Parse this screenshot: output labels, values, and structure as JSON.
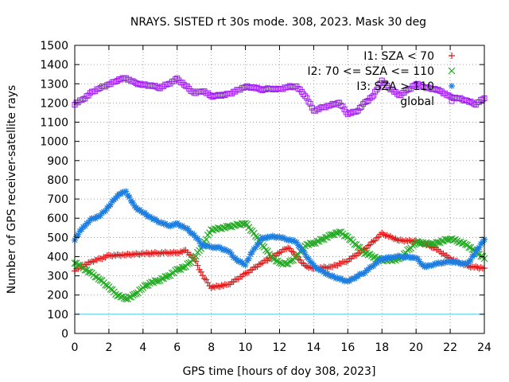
{
  "chart_data": {
    "type": "scatter",
    "title": "NRAYS. SISTED rt 30s mode. 308, 2023. Mask 30 deg",
    "xlabel": "GPS time [hours of doy 308, 2023]",
    "ylabel": "Number of GPS receiver-satellite rays",
    "xlim": [
      0,
      24
    ],
    "ylim": [
      0,
      1500
    ],
    "x_ticks": [
      "0",
      "2",
      "4",
      "6",
      "8",
      "10",
      "12",
      "14",
      "16",
      "18",
      "20",
      "22",
      "24"
    ],
    "y_ticks": [
      "0",
      "100",
      "200",
      "300",
      "400",
      "500",
      "600",
      "700",
      "800",
      "900",
      "1000",
      "1100",
      "1200",
      "1300",
      "1400",
      "1500"
    ],
    "grid": true,
    "legend_position": "top-right",
    "threshold_line": {
      "value": 100,
      "color": "#40d0e0"
    },
    "series": [
      {
        "name": "I1: SZA < 70",
        "color": "#e41a1c",
        "marker": "plus",
        "x": [
          0,
          1,
          2,
          3,
          4,
          5,
          6,
          6.5,
          7,
          7.5,
          8,
          9,
          10,
          11,
          12,
          12.5,
          13,
          13.5,
          14,
          15,
          16,
          17,
          18,
          19,
          20,
          21,
          22,
          23,
          24
        ],
        "values": [
          330,
          375,
          405,
          410,
          415,
          420,
          420,
          430,
          390,
          300,
          240,
          255,
          310,
          370,
          420,
          450,
          400,
          350,
          340,
          345,
          380,
          440,
          520,
          485,
          480,
          450,
          390,
          350,
          340
        ]
      },
      {
        "name": "I2: 70 <= SZA <= 110",
        "color": "#22aa22",
        "marker": "cross",
        "x": [
          0,
          0.5,
          1,
          1.5,
          2,
          2.5,
          3,
          3.5,
          4,
          4.5,
          5,
          5.5,
          6,
          6.5,
          7,
          7.5,
          8,
          9,
          10,
          10.5,
          11,
          11.5,
          12,
          12.5,
          13,
          13.5,
          14,
          15,
          15.5,
          16,
          17,
          18,
          19,
          20,
          21,
          22,
          23,
          24
        ],
        "values": [
          370,
          340,
          310,
          280,
          240,
          200,
          180,
          200,
          240,
          265,
          280,
          300,
          330,
          350,
          390,
          460,
          540,
          555,
          575,
          520,
          460,
          400,
          365,
          365,
          400,
          460,
          470,
          510,
          530,
          500,
          420,
          380,
          385,
          475,
          465,
          495,
          460,
          390
        ]
      },
      {
        "name": "I3: SZA > 110",
        "color": "#1e7fe0",
        "marker": "star",
        "x": [
          0,
          0.5,
          1,
          1.5,
          2,
          2.5,
          3,
          3.5,
          4,
          4.5,
          5,
          5.5,
          6,
          6.5,
          7,
          7.5,
          8,
          8.5,
          9,
          9.5,
          10,
          10.5,
          11,
          11.5,
          12,
          12.5,
          13,
          14,
          15,
          16,
          17,
          18,
          19,
          20,
          20.5,
          21,
          22,
          23,
          24
        ],
        "values": [
          490,
          555,
          595,
          615,
          660,
          720,
          740,
          660,
          630,
          600,
          580,
          560,
          570,
          550,
          510,
          460,
          450,
          445,
          430,
          380,
          360,
          440,
          495,
          505,
          500,
          490,
          475,
          350,
          300,
          270,
          320,
          390,
          400,
          395,
          345,
          360,
          375,
          360,
          490
        ]
      },
      {
        "name": "global",
        "color": "#a020f0",
        "marker": "square",
        "x": [
          0,
          0.5,
          1,
          1.5,
          2,
          2.5,
          3,
          3.5,
          4,
          4.5,
          5,
          5.5,
          6,
          6.5,
          7,
          7.5,
          8,
          9,
          10,
          10.5,
          11,
          11.5,
          12,
          12.5,
          13,
          13.5,
          14,
          14.5,
          15,
          15.5,
          16,
          16.5,
          17,
          17.5,
          18,
          18.5,
          19,
          19.5,
          20,
          20.5,
          21,
          21.5,
          22,
          22.5,
          23,
          23.5,
          24
        ],
        "values": [
          1195,
          1220,
          1255,
          1280,
          1295,
          1320,
          1330,
          1305,
          1295,
          1290,
          1280,
          1300,
          1325,
          1290,
          1250,
          1265,
          1235,
          1245,
          1285,
          1280,
          1270,
          1275,
          1270,
          1285,
          1285,
          1240,
          1160,
          1175,
          1190,
          1200,
          1145,
          1155,
          1200,
          1240,
          1315,
          1275,
          1240,
          1265,
          1300,
          1280,
          1275,
          1260,
          1230,
          1225,
          1210,
          1195,
          1225
        ]
      }
    ]
  }
}
